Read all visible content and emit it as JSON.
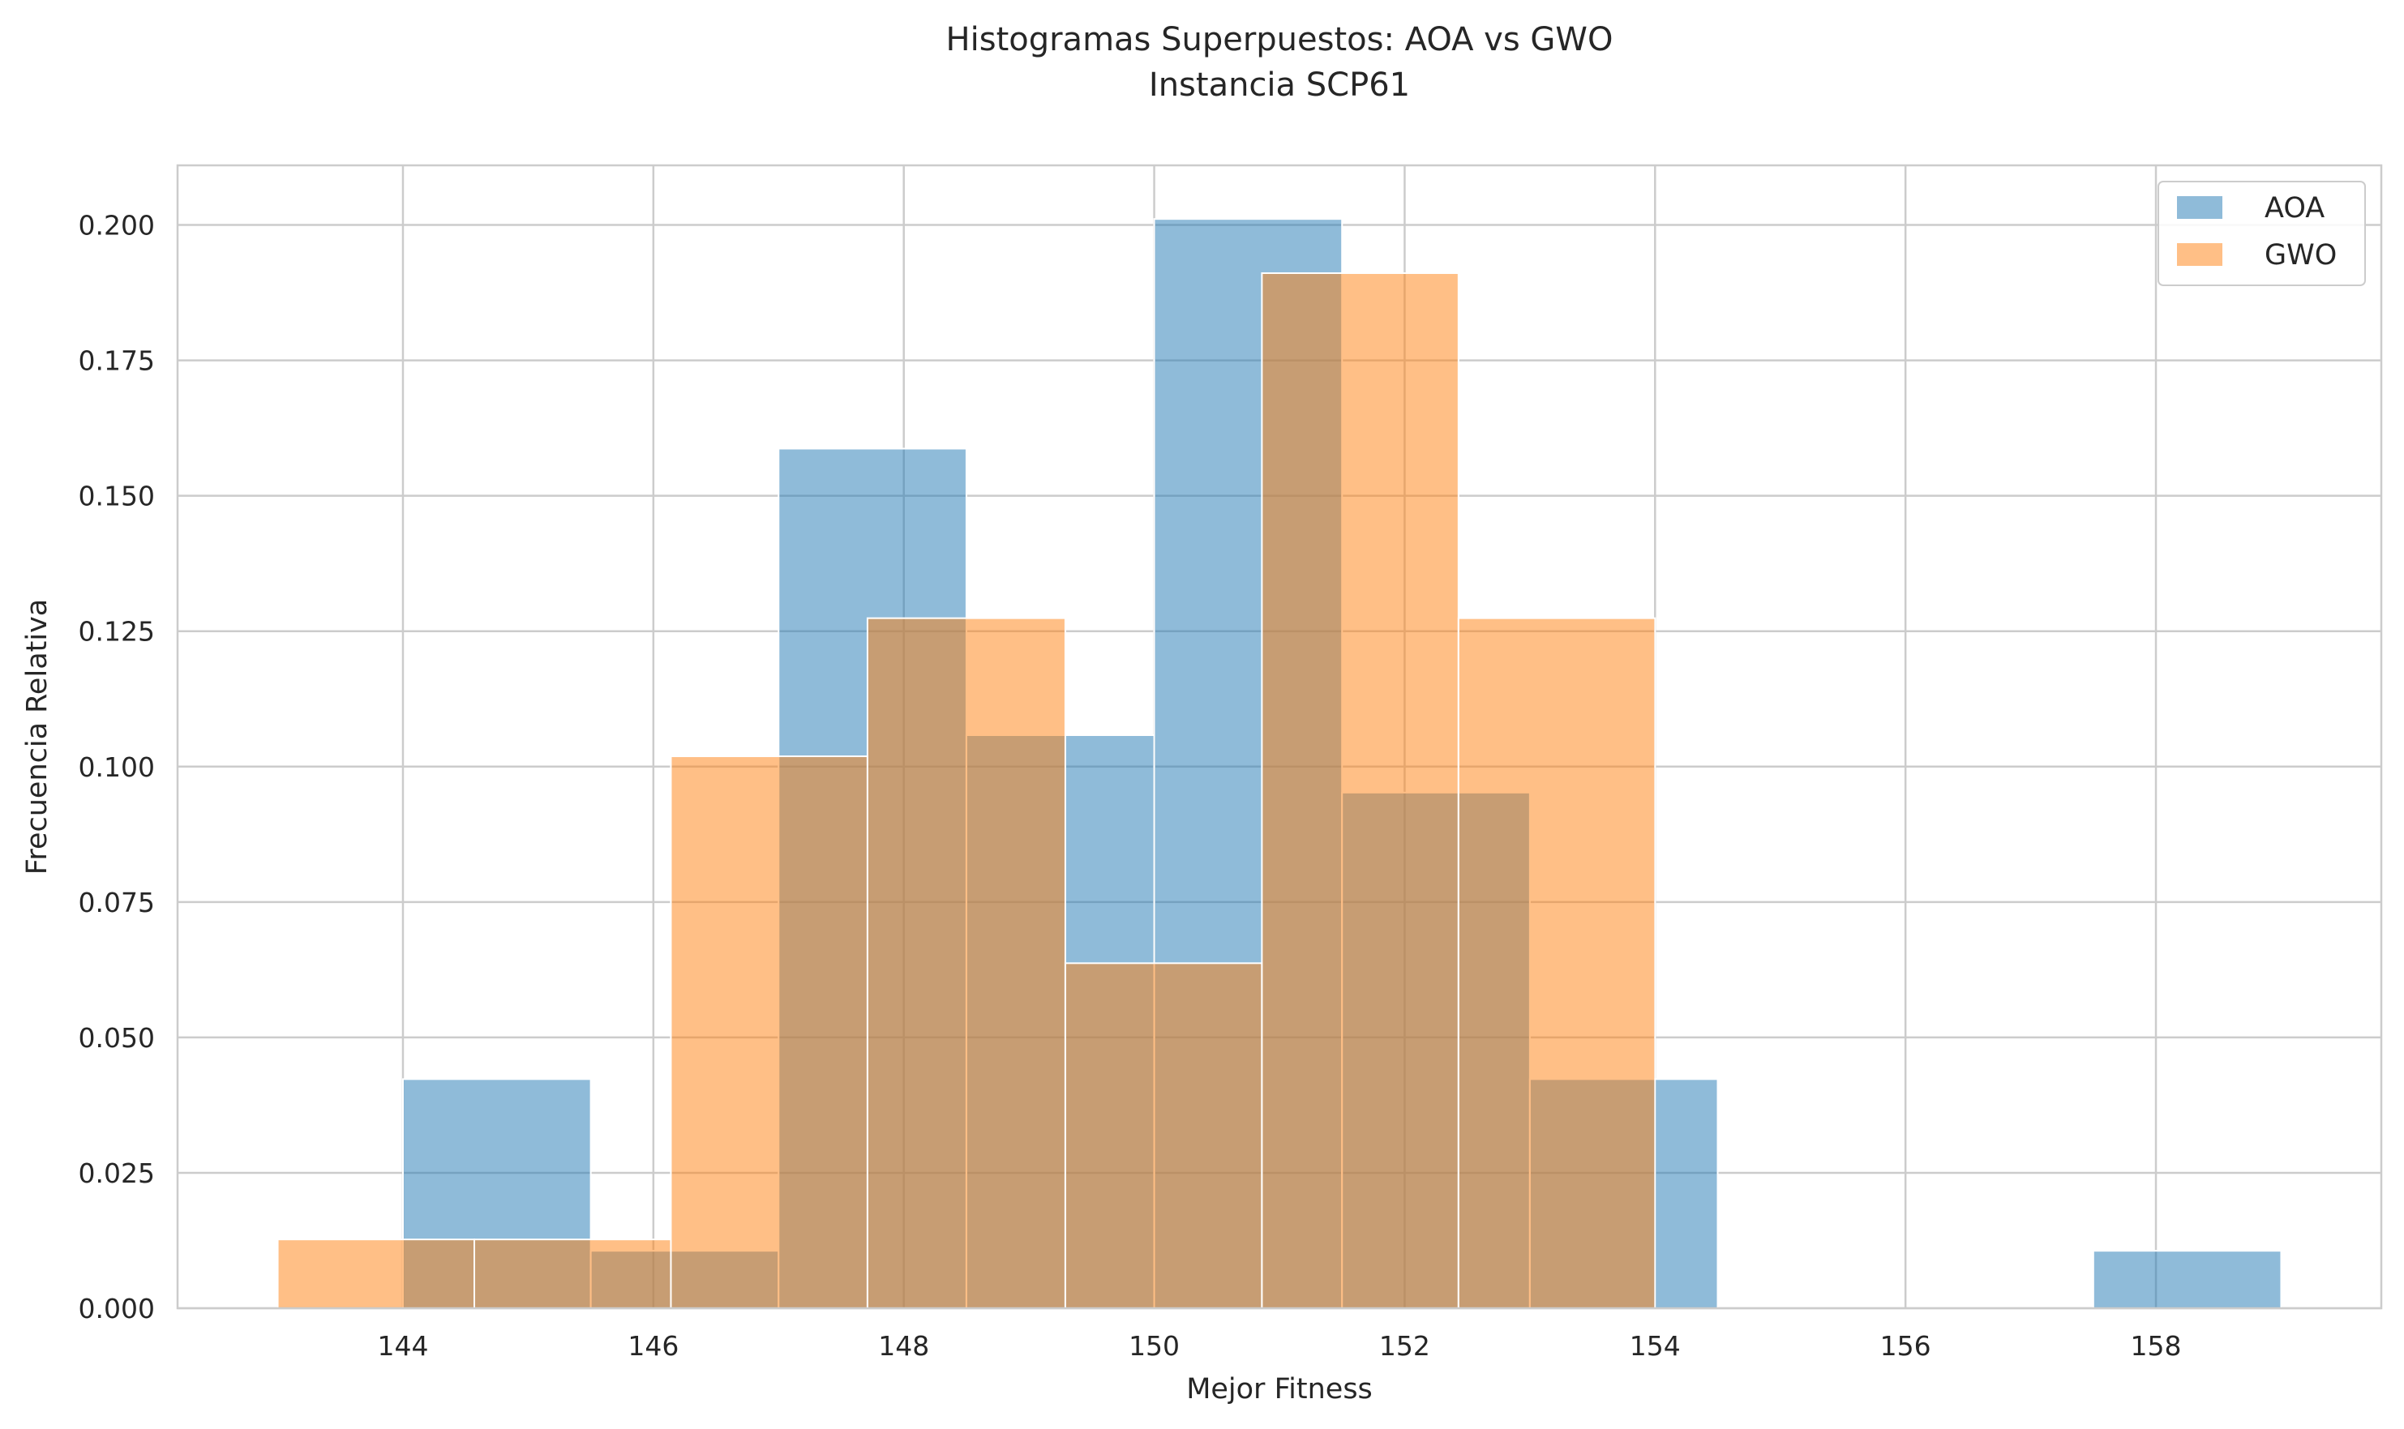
{
  "chart_data": {
    "type": "bar",
    "subtype": "overlaid-histogram",
    "title_lines": [
      "Histogramas Superpuestos: AOA vs GWO",
      "Instancia SCP61"
    ],
    "xlabel": "Mejor Fitness",
    "ylabel": "Frecuencia Relativa",
    "xlim": [
      142.2,
      159.8
    ],
    "ylim": [
      0,
      0.211
    ],
    "xticks": [
      144,
      146,
      148,
      150,
      152,
      154,
      156,
      158
    ],
    "yticks": [
      0.0,
      0.025,
      0.05,
      0.075,
      0.1,
      0.125,
      0.15,
      0.175,
      0.2
    ],
    "ytick_labels": [
      "0.000",
      "0.025",
      "0.050",
      "0.075",
      "0.100",
      "0.125",
      "0.150",
      "0.175",
      "0.200"
    ],
    "xtick_labels": [
      "144",
      "146",
      "148",
      "150",
      "152",
      "154",
      "156",
      "158"
    ],
    "grid": true,
    "legend_position": "top-right",
    "series": [
      {
        "name": "AOA",
        "color": "#1f77b4",
        "opacity": 0.5,
        "bins": [
          {
            "x0": 144.0,
            "x1": 145.5,
            "value": 0.0423
          },
          {
            "x0": 145.5,
            "x1": 147.0,
            "value": 0.0106
          },
          {
            "x0": 147.0,
            "x1": 148.5,
            "value": 0.1587
          },
          {
            "x0": 148.5,
            "x1": 150.0,
            "value": 0.1058
          },
          {
            "x0": 150.0,
            "x1": 151.5,
            "value": 0.2011
          },
          {
            "x0": 151.5,
            "x1": 153.0,
            "value": 0.0952
          },
          {
            "x0": 153.0,
            "x1": 154.5,
            "value": 0.0423
          },
          {
            "x0": 154.5,
            "x1": 156.0,
            "value": 0.0
          },
          {
            "x0": 156.0,
            "x1": 157.5,
            "value": 0.0
          },
          {
            "x0": 157.5,
            "x1": 159.0,
            "value": 0.0106
          }
        ]
      },
      {
        "name": "GWO",
        "color": "#ff7f0e",
        "opacity": 0.5,
        "bins": [
          {
            "x0": 143.0,
            "x1": 144.57,
            "value": 0.0127
          },
          {
            "x0": 144.57,
            "x1": 146.14,
            "value": 0.0127
          },
          {
            "x0": 146.14,
            "x1": 147.71,
            "value": 0.1019
          },
          {
            "x0": 147.71,
            "x1": 149.29,
            "value": 0.1274
          },
          {
            "x0": 149.29,
            "x1": 150.86,
            "value": 0.0637
          },
          {
            "x0": 150.86,
            "x1": 152.43,
            "value": 0.1911
          },
          {
            "x0": 152.43,
            "x1": 154.0,
            "value": 0.1274
          }
        ]
      }
    ]
  }
}
